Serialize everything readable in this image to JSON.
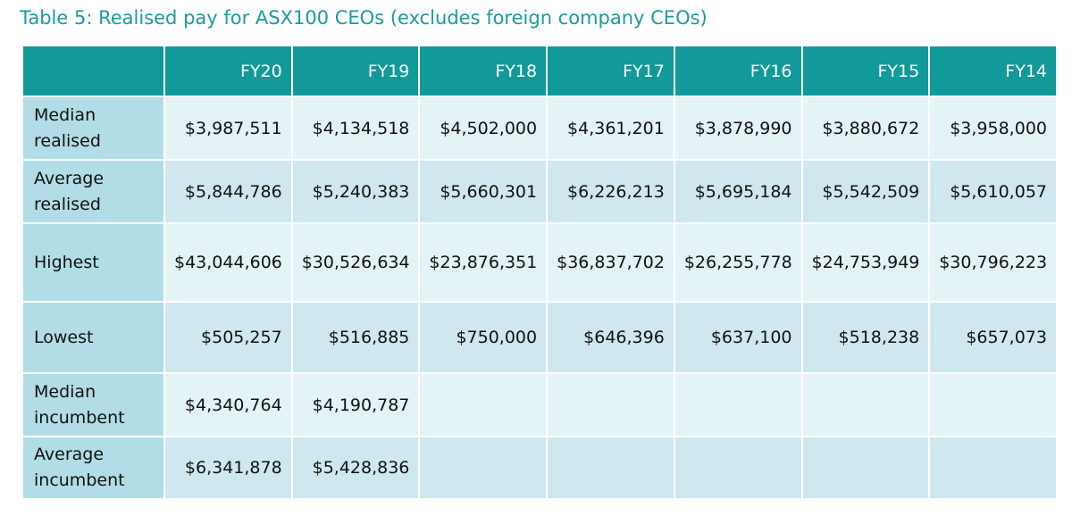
{
  "title": "Table 5: Realised pay for ASX100 CEOs (excludes foreign company CEOs)",
  "columns": [
    "",
    "FY20",
    "FY19",
    "FY18",
    "FY17",
    "FY16",
    "FY15",
    "FY14"
  ],
  "rows": [
    {
      "label": "Median realised",
      "values": [
        "$3,987,511",
        "$4,134,518",
        "$4,502,000",
        "$4,361,201",
        "$3,878,990",
        "$3,880,672",
        "$3,958,000"
      ]
    },
    {
      "label": "Average realised",
      "values": [
        "$5,844,786",
        "$5,240,383",
        "$5,660,301",
        "$6,226,213",
        "$5,695,184",
        "$5,542,509",
        "$5,610,057"
      ]
    },
    {
      "label": "Highest",
      "values": [
        "$43,044,606",
        "$30,526,634",
        "$23,876,351",
        "$36,837,702",
        "$26,255,778",
        "$24,753,949",
        "$30,796,223"
      ]
    },
    {
      "label": "Lowest",
      "values": [
        "$505,257",
        "$516,885",
        "$750,000",
        "$646,396",
        "$637,100",
        "$518,238",
        "$657,073"
      ]
    },
    {
      "label": "Median incumbent",
      "values": [
        "$4,340,764",
        "$4,190,787",
        "",
        "",
        "",
        "",
        ""
      ]
    },
    {
      "label": "Average incumbent",
      "values": [
        "$6,341,878",
        "$5,428,836",
        "",
        "",
        "",
        "",
        ""
      ]
    }
  ]
}
